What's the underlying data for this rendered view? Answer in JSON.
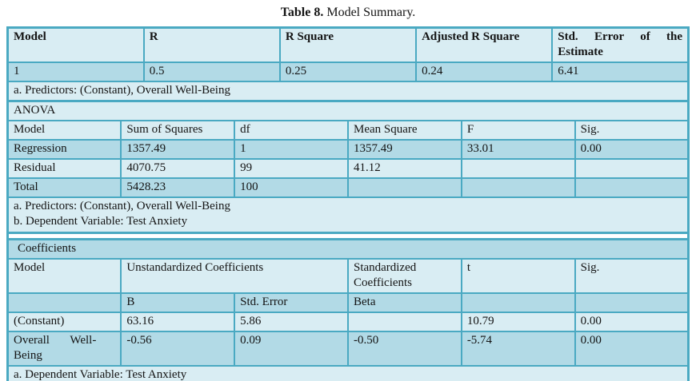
{
  "colors": {
    "page_bg": "#ffffff",
    "border": "#4aa9c2",
    "row_light": "#d9edf3",
    "row_dark": "#b2dae6",
    "text": "#141414"
  },
  "title": {
    "label": "Table 8.",
    "text": " Model Summary."
  },
  "model_summary": {
    "headers": [
      "Model",
      "R",
      "R Square",
      "Adjusted R Square",
      "Std. Error of the Estimate"
    ],
    "rows": [
      [
        "1",
        "0.5",
        "0.25",
        "0.24",
        "6.41"
      ]
    ],
    "footnote": "a. Predictors: (Constant), Overall Well-Being"
  },
  "anova": {
    "section_label": "ANOVA",
    "headers": [
      "Model",
      "Sum of Squares",
      "df",
      "Mean Square",
      "F",
      "Sig."
    ],
    "rows": [
      [
        "Regression",
        "1357.49",
        "1",
        "1357.49",
        "33.01",
        "0.00"
      ],
      [
        "Residual",
        "4070.75",
        "99",
        "41.12",
        "",
        ""
      ],
      [
        "Total",
        "5428.23",
        "100",
        "",
        "",
        ""
      ]
    ],
    "footnotes": [
      "a. Predictors: (Constant), Overall Well-Being",
      "b. Dependent Variable: Test Anxiety"
    ]
  },
  "coefficients": {
    "section_label": "Coefficients",
    "header_row1": {
      "model": "Model",
      "unstandardized": "Unstandardized Coefficients",
      "standardized": "Standardized Coefficients",
      "t": "t",
      "sig": "Sig."
    },
    "header_row2": {
      "b": "B",
      "std_error": "Std. Error",
      "beta": "Beta"
    },
    "rows": [
      [
        "(Constant)",
        "63.16",
        "5.86",
        "",
        "10.79",
        "0.00"
      ],
      [
        "Overall Well-Being",
        "-0.56",
        "0.09",
        "-0.50",
        "-5.74",
        "0.00"
      ]
    ],
    "footnote": "a. Dependent Variable: Test Anxiety"
  }
}
